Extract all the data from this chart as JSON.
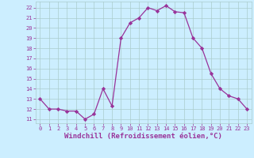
{
  "x": [
    0,
    1,
    2,
    3,
    4,
    5,
    6,
    7,
    8,
    9,
    10,
    11,
    12,
    13,
    14,
    15,
    16,
    17,
    18,
    19,
    20,
    21,
    22,
    23
  ],
  "y": [
    13,
    12,
    12,
    11.8,
    11.8,
    11,
    11.5,
    14,
    12.3,
    19,
    20.5,
    21,
    22,
    21.7,
    22.2,
    21.6,
    21.5,
    19,
    18,
    15.5,
    14,
    13.3,
    13,
    12
  ],
  "line_color": "#993399",
  "marker": "D",
  "marker_size": 2.2,
  "bg_color": "#cceeff",
  "grid_color": "#aacccc",
  "xlabel": "Windchill (Refroidissement éolien,°C)",
  "xlabel_color": "#993399",
  "ylim": [
    10.6,
    22.6
  ],
  "xlim": [
    -0.5,
    23.5
  ],
  "yticks": [
    11,
    12,
    13,
    14,
    15,
    16,
    17,
    18,
    19,
    20,
    21,
    22
  ],
  "xticks": [
    0,
    1,
    2,
    3,
    4,
    5,
    6,
    7,
    8,
    9,
    10,
    11,
    12,
    13,
    14,
    15,
    16,
    17,
    18,
    19,
    20,
    21,
    22,
    23
  ],
  "tick_color": "#993399",
  "tick_fontsize": 5,
  "xlabel_fontsize": 6.5,
  "line_width": 0.9
}
